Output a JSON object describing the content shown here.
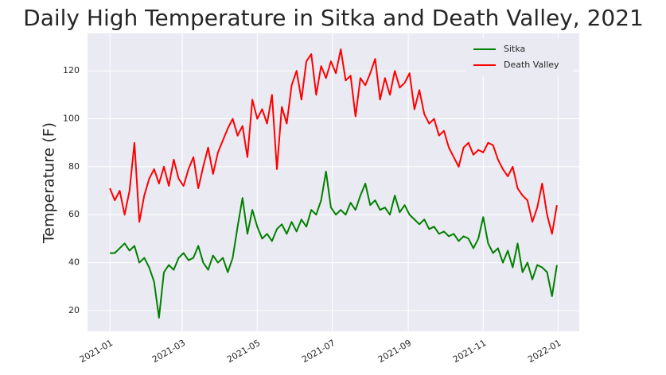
{
  "chart_data": {
    "type": "line",
    "title": "Daily High Temperature in Sitka and Death Valley, 2021",
    "y_label": "Temperature (F)",
    "x": [
      0,
      4,
      8,
      12,
      16,
      20,
      24,
      28,
      32,
      36,
      40,
      44,
      48,
      52,
      56,
      60,
      64,
      68,
      72,
      76,
      80,
      84,
      88,
      92,
      96,
      100,
      104,
      108,
      112,
      116,
      120,
      124,
      128,
      132,
      136,
      140,
      144,
      148,
      152,
      156,
      160,
      164,
      168,
      172,
      176,
      180,
      184,
      188,
      192,
      196,
      200,
      204,
      208,
      212,
      216,
      220,
      224,
      228,
      232,
      236,
      240,
      244,
      248,
      252,
      256,
      260,
      264,
      268,
      272,
      276,
      280,
      284,
      288,
      292,
      296,
      300,
      304,
      308,
      312,
      316,
      320,
      324,
      328,
      332,
      336,
      340,
      344,
      348,
      352,
      356,
      360,
      364
    ],
    "series": [
      {
        "name": "Sitka",
        "color": "#008000",
        "values": [
          44,
          44,
          46,
          48,
          45,
          47,
          40,
          42,
          38,
          32,
          17,
          36,
          39,
          37,
          42,
          44,
          41,
          42,
          47,
          40,
          37,
          43,
          40,
          42,
          36,
          42,
          55,
          67,
          52,
          62,
          55,
          50,
          52,
          49,
          54,
          56,
          52,
          57,
          53,
          58,
          55,
          62,
          60,
          66,
          78,
          63,
          60,
          62,
          60,
          65,
          62,
          68,
          73,
          64,
          66,
          62,
          63,
          60,
          68,
          61,
          64,
          60,
          58,
          56,
          58,
          54,
          55,
          52,
          53,
          51,
          52,
          49,
          51,
          50,
          46,
          50,
          59,
          48,
          44,
          46,
          40,
          45,
          38,
          48,
          36,
          40,
          33,
          39,
          38,
          36,
          26,
          39
        ]
      },
      {
        "name": "Death Valley",
        "color": "#ff0000",
        "values": [
          71,
          66,
          70,
          60,
          70,
          90,
          57,
          68,
          75,
          79,
          73,
          80,
          72,
          83,
          75,
          72,
          79,
          84,
          71,
          80,
          88,
          77,
          86,
          91,
          96,
          100,
          93,
          97,
          84,
          108,
          100,
          104,
          98,
          110,
          79,
          105,
          98,
          114,
          120,
          108,
          124,
          127,
          110,
          122,
          117,
          124,
          119,
          129,
          116,
          118,
          101,
          117,
          114,
          119,
          125,
          108,
          117,
          110,
          120,
          113,
          115,
          119,
          104,
          112,
          102,
          98,
          100,
          93,
          95,
          88,
          84,
          80,
          88,
          90,
          85,
          87,
          86,
          90,
          89,
          83,
          79,
          76,
          80,
          71,
          68,
          66,
          57,
          63,
          73,
          60,
          52,
          64
        ]
      }
    ],
    "xlim": [
      -18.2,
      382.2
    ],
    "xticks": [
      {
        "value": 0,
        "label": "2021-01"
      },
      {
        "value": 59,
        "label": "2021-03"
      },
      {
        "value": 120,
        "label": "2021-05"
      },
      {
        "value": 181,
        "label": "2021-07"
      },
      {
        "value": 243,
        "label": "2021-09"
      },
      {
        "value": 304,
        "label": "2021-11"
      },
      {
        "value": 365,
        "label": "2022-01"
      }
    ],
    "ylim": [
      11.35,
      135.65
    ],
    "yticks": [
      20,
      40,
      60,
      80,
      100,
      120
    ],
    "grid": true,
    "legend": "upper right"
  }
}
